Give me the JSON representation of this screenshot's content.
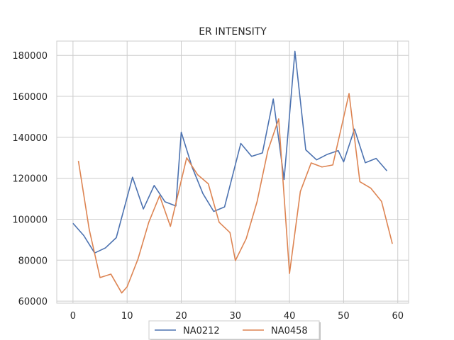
{
  "chart_data": {
    "type": "line",
    "title": "ER INTENSITY",
    "xlabel": "",
    "ylabel": "",
    "xlim": [
      -3,
      62
    ],
    "ylim": [
      59000,
      187000
    ],
    "xticks": [
      0,
      10,
      20,
      30,
      40,
      50,
      60
    ],
    "yticks": [
      60000,
      80000,
      100000,
      120000,
      140000,
      160000,
      180000
    ],
    "grid": true,
    "legend_position": "bottom-center",
    "series": [
      {
        "name": "NA0212",
        "color": "#4c72b0",
        "x": [
          0,
          2,
          4,
          6,
          8,
          11,
          13,
          15,
          17,
          19,
          20,
          22,
          24,
          26,
          28,
          31,
          33,
          35,
          37,
          39,
          41,
          43,
          45,
          47,
          49,
          50,
          52,
          54,
          56,
          58
        ],
        "y": [
          98000,
          92000,
          83500,
          86000,
          91000,
          120500,
          105000,
          116500,
          108500,
          106500,
          142500,
          125500,
          112500,
          103800,
          106000,
          137000,
          130700,
          132400,
          158700,
          119400,
          182000,
          133900,
          129000,
          131700,
          133500,
          128000,
          144000,
          127600,
          129700,
          123600
        ]
      },
      {
        "name": "NA0458",
        "color": "#dd8452",
        "x": [
          1,
          3,
          5,
          7,
          9,
          10,
          12,
          14,
          16,
          18,
          21,
          23,
          25,
          27,
          29,
          30,
          32,
          34,
          36,
          38,
          40,
          42,
          44,
          46,
          48,
          51,
          53,
          55,
          57,
          59
        ],
        "y": [
          128500,
          95000,
          71500,
          73200,
          64000,
          67000,
          80500,
          98500,
          111500,
          96500,
          130000,
          121800,
          117300,
          98500,
          93500,
          79800,
          90500,
          108500,
          133500,
          149000,
          73500,
          113500,
          127500,
          125500,
          126500,
          161400,
          118300,
          115200,
          108700,
          88000
        ]
      }
    ]
  }
}
